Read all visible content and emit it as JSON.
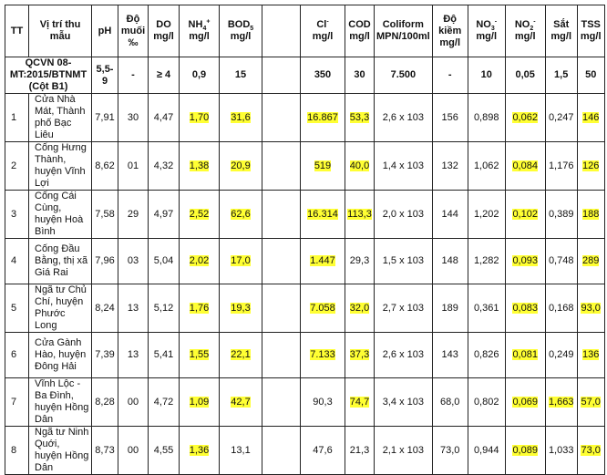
{
  "headers": [
    {
      "main": "TT"
    },
    {
      "main": "Vị trí thu mẫu"
    },
    {
      "main": "pH"
    },
    {
      "main": "Độ muối",
      "unit": "‰"
    },
    {
      "main": "DO",
      "unit": "mg/l"
    },
    {
      "main": "NH",
      "sub": "4",
      "sup": "+",
      "unit": "mg/l"
    },
    {
      "main": "BOD",
      "sub": "5",
      "unit": "mg/l"
    },
    {
      "main": ""
    },
    {
      "main": "Cl",
      "sup": "-",
      "unit": "mg/l"
    },
    {
      "main": "COD",
      "unit": "mg/l"
    },
    {
      "main": "Coliform",
      "unit": "MPN/100ml"
    },
    {
      "main": "Độ kiềm",
      "unit": "mg/l"
    },
    {
      "main": "NO",
      "sub": "3",
      "sup": "-",
      "unit": "mg/l"
    },
    {
      "main": "NO",
      "sub": "2",
      "sup": "-",
      "unit": "mg/l"
    },
    {
      "main": "Sắt",
      "unit": "mg/l"
    },
    {
      "main": "TSS",
      "unit": "mg/l"
    }
  ],
  "standard": {
    "label": "QCVN 08-MT:2015/BTNMT (Cột B1)",
    "values": [
      "5,5-9",
      "-",
      "≥ 4",
      "0,9",
      "15",
      "",
      "350",
      "30",
      "7.500",
      "-",
      "10",
      "0,05",
      "1,5",
      "50"
    ]
  },
  "highlight_color": "#ffff33",
  "rows": [
    {
      "tt": "1",
      "loc": "Cửa Nhà Mát, Thành phố Bạc Liêu",
      "values": [
        [
          "7,91",
          0
        ],
        [
          "30",
          0
        ],
        [
          "4,47",
          0
        ],
        [
          "1,70",
          1
        ],
        [
          "31,6",
          1
        ],
        [
          "",
          0
        ],
        [
          "16.867",
          1
        ],
        [
          "53,3",
          1
        ],
        [
          "2,6 x 103",
          0
        ],
        [
          "156",
          0
        ],
        [
          "0,898",
          0
        ],
        [
          "0,062",
          1
        ],
        [
          "0,247",
          0
        ],
        [
          "146",
          1
        ]
      ]
    },
    {
      "tt": "2",
      "loc": "Cống Hưng Thành, huyện Vĩnh Lợi",
      "values": [
        [
          "8,62",
          0
        ],
        [
          "01",
          0
        ],
        [
          "4,32",
          0
        ],
        [
          "1,38",
          1
        ],
        [
          "20,9",
          1
        ],
        [
          "",
          0
        ],
        [
          "519",
          1
        ],
        [
          "40,0",
          1
        ],
        [
          "1,4 x 103",
          0
        ],
        [
          "132",
          0
        ],
        [
          "1,062",
          0
        ],
        [
          "0,084",
          1
        ],
        [
          "1,176",
          0
        ],
        [
          "126",
          1
        ]
      ]
    },
    {
      "tt": "3",
      "loc": "Cống Cái Cùng, huyện Hoà Bình",
      "values": [
        [
          "7,58",
          0
        ],
        [
          "29",
          0
        ],
        [
          "4,97",
          0
        ],
        [
          "2,52",
          1
        ],
        [
          "62,6",
          1
        ],
        [
          "",
          0
        ],
        [
          "16.314",
          1
        ],
        [
          "113,3",
          1
        ],
        [
          "2,0 x 103",
          0
        ],
        [
          "144",
          0
        ],
        [
          "1,202",
          0
        ],
        [
          "0,102",
          1
        ],
        [
          "0,389",
          0
        ],
        [
          "188",
          1
        ]
      ]
    },
    {
      "tt": "4",
      "loc": "Cống Đầu Bằng, thị xã Giá Rai",
      "values": [
        [
          "7,96",
          0
        ],
        [
          "03",
          0
        ],
        [
          "5,04",
          0
        ],
        [
          "2,02",
          1
        ],
        [
          "17,0",
          1
        ],
        [
          "",
          0
        ],
        [
          "1.447",
          1
        ],
        [
          "29,3",
          0
        ],
        [
          "1,5 x 103",
          0
        ],
        [
          "148",
          0
        ],
        [
          "1,282",
          0
        ],
        [
          "0,093",
          1
        ],
        [
          "0,748",
          0
        ],
        [
          "289",
          1
        ]
      ]
    },
    {
      "tt": "5",
      "loc": "Ngã tư Chủ Chí, huyện Phước Long",
      "values": [
        [
          "8,24",
          0
        ],
        [
          "13",
          0
        ],
        [
          "5,12",
          0
        ],
        [
          "1,76",
          1
        ],
        [
          "19,3",
          1
        ],
        [
          "",
          0
        ],
        [
          "7.058",
          1
        ],
        [
          "32,0",
          1
        ],
        [
          "2,7 x 103",
          0
        ],
        [
          "189",
          0
        ],
        [
          "0,361",
          0
        ],
        [
          "0,083",
          1
        ],
        [
          "0,168",
          0
        ],
        [
          "93,0",
          1
        ]
      ]
    },
    {
      "tt": "6",
      "loc": "Cửa Gành Hào, huyện Đông Hải",
      "values": [
        [
          "7,39",
          0
        ],
        [
          "13",
          0
        ],
        [
          "5,41",
          0
        ],
        [
          "1,55",
          1
        ],
        [
          "22,1",
          1
        ],
        [
          "",
          0
        ],
        [
          "7.133",
          1
        ],
        [
          "37,3",
          1
        ],
        [
          "2,6 x 103",
          0
        ],
        [
          "143",
          0
        ],
        [
          "0,826",
          0
        ],
        [
          "0,081",
          1
        ],
        [
          "0,249",
          0
        ],
        [
          "136",
          1
        ]
      ]
    },
    {
      "tt": "7",
      "loc": "Vĩnh Lộc - Ba Đình, huyện Hồng Dân",
      "values": [
        [
          "8,28",
          0
        ],
        [
          "00",
          0
        ],
        [
          "4,72",
          0
        ],
        [
          "1,09",
          1
        ],
        [
          "42,7",
          1
        ],
        [
          "",
          0
        ],
        [
          "90,3",
          0
        ],
        [
          "74,7",
          1
        ],
        [
          "3,4 x 103",
          0
        ],
        [
          "68,0",
          0
        ],
        [
          "0,802",
          0
        ],
        [
          "0,069",
          1
        ],
        [
          "1,663",
          1
        ],
        [
          "57,0",
          1
        ]
      ]
    },
    {
      "tt": "8",
      "loc": "Ngã tư Ninh Quới, huyện Hồng Dân",
      "values": [
        [
          "8,73",
          0
        ],
        [
          "00",
          0
        ],
        [
          "4,55",
          0
        ],
        [
          "1,36",
          1
        ],
        [
          "13,1",
          0
        ],
        [
          "",
          0
        ],
        [
          "47,6",
          0
        ],
        [
          "21,3",
          0
        ],
        [
          "2,1 x 103",
          0
        ],
        [
          "73,0",
          0
        ],
        [
          "0,944",
          0
        ],
        [
          "0,089",
          1
        ],
        [
          "1,033",
          0
        ],
        [
          "73,0",
          1
        ]
      ]
    }
  ]
}
